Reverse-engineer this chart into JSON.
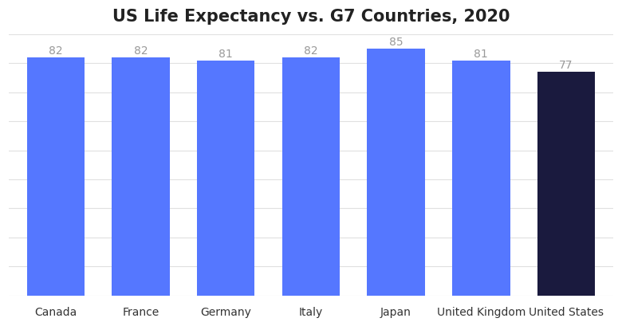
{
  "title": "US Life Expectancy vs. G7 Countries, 2020",
  "categories": [
    "Canada",
    "France",
    "Germany",
    "Italy",
    "Japan",
    "United Kingdom",
    "United States"
  ],
  "values": [
    82,
    82,
    81,
    82,
    85,
    81,
    77
  ],
  "bar_colors": [
    "#5577ff",
    "#5577ff",
    "#5577ff",
    "#5577ff",
    "#5577ff",
    "#5577ff",
    "#1a1a3e"
  ],
  "label_color": "#999999",
  "background_color": "#ffffff",
  "title_fontsize": 15,
  "label_fontsize": 10,
  "tick_fontsize": 10,
  "ylim": [
    0,
    90
  ],
  "grid_color": "#e0e0e0"
}
